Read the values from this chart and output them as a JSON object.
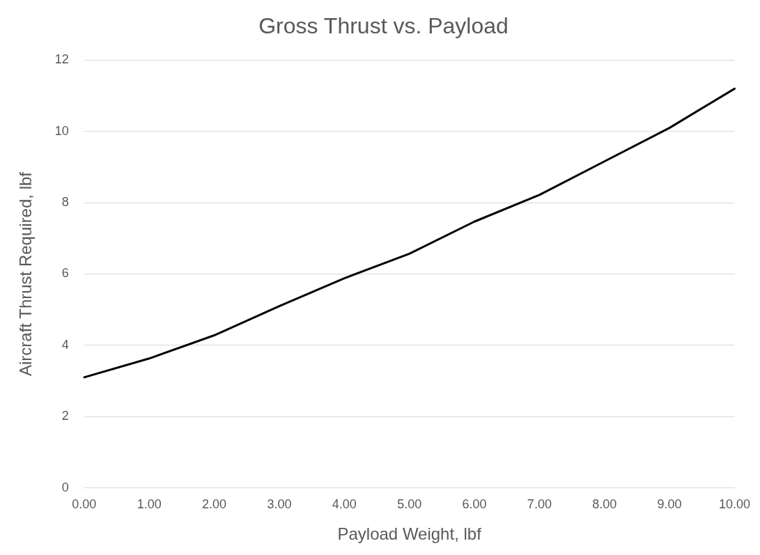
{
  "chart_data": {
    "type": "line",
    "title": "Gross Thrust vs. Payload",
    "xlabel": "Payload Weight, lbf",
    "ylabel": "Aircraft Thrust Required, lbf",
    "categories": [
      "0.00",
      "1.00",
      "2.00",
      "3.00",
      "4.00",
      "5.00",
      "6.00",
      "7.00",
      "8.00",
      "9.00",
      "10.00"
    ],
    "series": [
      {
        "color": "#000000",
        "values": [
          3.1,
          3.63,
          4.28,
          5.1,
          5.88,
          6.57,
          7.47,
          8.22,
          9.16,
          10.1,
          11.2
        ]
      }
    ],
    "ylim": [
      0,
      12
    ],
    "yticks": [
      0,
      2,
      4,
      6,
      8,
      10,
      12
    ],
    "grid": "y",
    "legend": false,
    "marker": "none",
    "line_style": "solid"
  }
}
